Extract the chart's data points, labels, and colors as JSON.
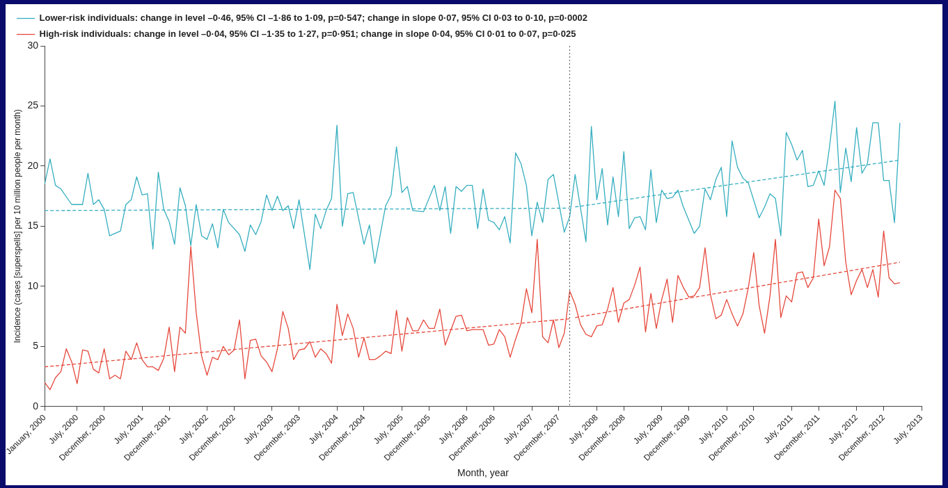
{
  "chart_data": {
    "type": "line",
    "xlabel": "Month, year",
    "ylabel": "Incidence (cases [superspells] per 10 million people per month)",
    "xlim": [
      "2000-01",
      "2013-07"
    ],
    "xticks": [
      {
        "value": "2000-01",
        "label": "January, 2000"
      },
      {
        "value": "2000-07",
        "label": "July, 2000"
      },
      {
        "value": "2000-12",
        "label": "December, 2000"
      },
      {
        "value": "2001-07",
        "label": "July, 2001"
      },
      {
        "value": "2001-12",
        "label": "December, 2001"
      },
      {
        "value": "2002-07",
        "label": "July, 2002"
      },
      {
        "value": "2002-12",
        "label": "December, 2002"
      },
      {
        "value": "2003-07",
        "label": "July, 2003"
      },
      {
        "value": "2003-12",
        "label": "December, 2003"
      },
      {
        "value": "2004-07",
        "label": "July, 2004"
      },
      {
        "value": "2004-12",
        "label": "December, 2004"
      },
      {
        "value": "2005-07",
        "label": "July, 2005"
      },
      {
        "value": "2005-12",
        "label": "December, 2005"
      },
      {
        "value": "2006-07",
        "label": "July, 2006"
      },
      {
        "value": "2006-12",
        "label": "December, 2006"
      },
      {
        "value": "2007-07",
        "label": "July, 2007"
      },
      {
        "value": "2007-12",
        "label": "December, 2007"
      },
      {
        "value": "2008-07",
        "label": "July, 2008"
      },
      {
        "value": "2008-12",
        "label": "December, 2008"
      },
      {
        "value": "2009-07",
        "label": "July, 2009"
      },
      {
        "value": "2009-12",
        "label": "December, 2009"
      },
      {
        "value": "2010-07",
        "label": "July, 2010"
      },
      {
        "value": "2010-12",
        "label": "December, 2010"
      },
      {
        "value": "2011-07",
        "label": "July, 2011"
      },
      {
        "value": "2011-12",
        "label": "December, 2011"
      },
      {
        "value": "2012-07",
        "label": "July, 2012"
      },
      {
        "value": "2012-12",
        "label": "December, 2012"
      },
      {
        "value": "2013-07",
        "label": "July, 2013"
      }
    ],
    "ylim": [
      0,
      30
    ],
    "yticks": [
      0,
      5,
      10,
      15,
      20,
      25,
      30
    ],
    "grid": false,
    "legend": "top left",
    "marker": "none",
    "line_style": "solid",
    "ref_lines": [
      {
        "axis": "x",
        "value": "2008-02",
        "color": "#555555",
        "line_style": "dotted"
      }
    ],
    "series": [
      {
        "name": "Lower-risk individuals: change in level –0·46, 95% CI –1·86 to 1·09, p=0·547; change in slope 0·07, 95% CI 0·03 to 0·10, p=0·0002",
        "color": "#35aebf",
        "x": [
          "2000-01",
          "2000-02",
          "2000-03",
          "2000-04",
          "2000-06",
          "2000-08",
          "2000-09",
          "2000-10",
          "2000-11",
          "2000-12",
          "2001-01",
          "2001-03",
          "2001-04",
          "2001-05",
          "2001-06",
          "2001-07",
          "2001-08",
          "2001-09",
          "2001-10",
          "2001-11",
          "2001-12",
          "2002-01",
          "2002-02",
          "2002-03",
          "2002-04",
          "2002-05",
          "2002-06",
          "2002-07",
          "2002-08",
          "2002-09",
          "2002-10",
          "2002-11",
          "2003-01",
          "2003-02",
          "2003-03",
          "2003-04",
          "2003-05",
          "2003-06",
          "2003-07",
          "2003-08",
          "2003-09",
          "2003-10",
          "2003-11",
          "2003-12",
          "2004-02",
          "2004-03",
          "2004-04",
          "2004-05",
          "2004-06",
          "2004-07",
          "2004-08",
          "2004-09",
          "2004-10",
          "2004-12",
          "2005-01",
          "2005-02",
          "2005-04",
          "2005-05",
          "2005-06",
          "2005-07",
          "2005-08",
          "2005-09",
          "2005-11",
          "2006-01",
          "2006-02",
          "2006-03",
          "2006-04",
          "2006-05",
          "2006-06",
          "2006-07",
          "2006-08",
          "2006-09",
          "2006-10",
          "2006-11",
          "2006-12",
          "2007-01",
          "2007-02",
          "2007-03",
          "2007-04",
          "2007-05",
          "2007-06",
          "2007-07",
          "2007-08",
          "2007-09",
          "2007-10",
          "2007-11",
          "2008-01",
          "2008-02",
          "2008-03",
          "2008-05",
          "2008-06",
          "2008-07",
          "2008-08",
          "2008-09",
          "2008-10",
          "2008-11",
          "2008-12",
          "2009-01",
          "2009-02",
          "2009-03",
          "2009-04",
          "2009-05",
          "2009-06",
          "2009-07",
          "2009-08",
          "2009-09",
          "2009-10",
          "2009-11",
          "2010-01",
          "2010-02",
          "2010-03",
          "2010-04",
          "2010-05",
          "2010-06",
          "2010-07",
          "2010-08",
          "2010-09",
          "2010-10",
          "2010-11",
          "2011-01",
          "2011-02",
          "2011-03",
          "2011-04",
          "2011-05",
          "2011-06",
          "2011-07",
          "2011-08",
          "2011-09",
          "2011-10",
          "2011-11",
          "2011-12",
          "2012-01",
          "2012-02",
          "2012-03",
          "2012-04",
          "2012-05",
          "2012-06",
          "2012-07",
          "2012-08",
          "2012-09",
          "2012-10",
          "2012-11",
          "2012-12",
          "2013-01",
          "2013-02",
          "2013-03"
        ],
        "values": [
          18.5,
          20.6,
          18.4,
          18.1,
          16.8,
          16.8,
          19.4,
          16.8,
          17.2,
          16.4,
          14.2,
          14.6,
          16.8,
          17.2,
          19.1,
          17.6,
          17.7,
          13.1,
          19.5,
          16.4,
          15.4,
          13.5,
          18.2,
          16.7,
          13.4,
          16.8,
          14.2,
          13.9,
          15.2,
          13.2,
          16.4,
          15.3,
          14.3,
          12.9,
          15.1,
          14.3,
          15.4,
          17.6,
          16.3,
          17.5,
          16.3,
          16.7,
          14.8,
          17.2,
          11.4,
          16.0,
          14.8,
          16.3,
          17.3,
          23.4,
          15.0,
          17.7,
          17.8,
          13.5,
          15.1,
          11.9,
          16.7,
          17.6,
          21.6,
          17.8,
          18.3,
          16.3,
          16.2,
          18.4,
          16.3,
          18.3,
          14.4,
          18.3,
          17.9,
          18.4,
          18.4,
          14.8,
          18.1,
          15.5,
          15.3,
          14.7,
          15.8,
          13.6,
          21.1,
          20.2,
          18.4,
          14.2,
          17.0,
          15.3,
          18.9,
          19.3,
          14.5,
          15.8,
          19.3,
          13.7,
          23.3,
          17.2,
          19.8,
          15.1,
          19.1,
          15.8,
          21.2,
          14.8,
          15.7,
          15.8,
          14.7,
          19.7,
          15.3,
          18.0,
          17.3,
          17.4,
          18.0,
          16.6,
          14.4,
          15.0,
          18.1,
          17.2,
          18.9,
          19.9,
          15.8,
          22.1,
          19.9,
          19.0,
          18.6,
          15.7,
          16.6,
          17.7,
          17.3,
          14.2,
          22.8,
          21.8,
          20.5,
          21.3,
          18.3,
          18.4,
          19.6,
          18.4,
          21.6,
          25.4,
          17.8,
          21.5,
          18.7,
          23.2,
          19.4,
          20.2,
          23.6,
          23.6,
          18.8,
          18.8,
          15.3,
          23.6
        ]
      },
      {
        "name": "High-risk individuals: change in level –0·04, 95% CI –1·35 to 1·27, p=0·951; change in slope 0·04, 95% CI 0·01 to 0·07, p=0·025",
        "color": "#e5483b",
        "x": [
          "2000-01",
          "2000-02",
          "2000-03",
          "2000-04",
          "2000-05",
          "2000-06",
          "2000-07",
          "2000-08",
          "2000-09",
          "2000-10",
          "2000-11",
          "2000-12",
          "2001-01",
          "2001-02",
          "2001-03",
          "2001-04",
          "2001-05",
          "2001-06",
          "2001-07",
          "2001-08",
          "2001-09",
          "2001-10",
          "2001-11",
          "2001-12",
          "2002-01",
          "2002-02",
          "2002-03",
          "2002-04",
          "2002-05",
          "2002-06",
          "2002-07",
          "2002-08",
          "2002-09",
          "2002-10",
          "2002-11",
          "2002-12",
          "2003-01",
          "2003-02",
          "2003-03",
          "2003-04",
          "2003-05",
          "2003-06",
          "2003-07",
          "2003-08",
          "2003-09",
          "2003-10",
          "2003-11",
          "2003-12",
          "2004-01",
          "2004-02",
          "2004-03",
          "2004-04",
          "2004-05",
          "2004-06",
          "2004-07",
          "2004-08",
          "2004-09",
          "2004-10",
          "2004-11",
          "2004-12",
          "2005-01",
          "2005-02",
          "2005-03",
          "2005-04",
          "2005-05",
          "2005-06",
          "2005-07",
          "2005-08",
          "2005-09",
          "2005-10",
          "2005-11",
          "2005-12",
          "2006-01",
          "2006-02",
          "2006-03",
          "2006-04",
          "2006-05",
          "2006-06",
          "2006-07",
          "2006-08",
          "2006-09",
          "2006-10",
          "2006-11",
          "2006-12",
          "2007-01",
          "2007-02",
          "2007-03",
          "2007-04",
          "2007-05",
          "2007-06",
          "2007-07",
          "2007-08",
          "2007-09",
          "2007-10",
          "2007-11",
          "2007-12",
          "2008-01",
          "2008-02",
          "2008-03",
          "2008-04",
          "2008-05",
          "2008-06",
          "2008-07",
          "2008-08",
          "2008-09",
          "2008-10",
          "2008-11",
          "2008-12",
          "2009-01",
          "2009-02",
          "2009-03",
          "2009-04",
          "2009-05",
          "2009-06",
          "2009-07",
          "2009-08",
          "2009-09",
          "2009-10",
          "2009-11",
          "2009-12",
          "2010-01",
          "2010-02",
          "2010-03",
          "2010-04",
          "2010-05",
          "2010-06",
          "2010-07",
          "2010-08",
          "2010-09",
          "2010-10",
          "2010-11",
          "2010-12",
          "2011-01",
          "2011-02",
          "2011-03",
          "2011-04",
          "2011-05",
          "2011-06",
          "2011-07",
          "2011-08",
          "2011-09",
          "2011-10",
          "2011-11",
          "2011-12",
          "2012-01",
          "2012-02",
          "2012-03",
          "2012-04",
          "2012-05",
          "2012-06",
          "2012-07",
          "2012-08",
          "2012-09",
          "2012-10",
          "2012-11",
          "2012-12",
          "2013-01",
          "2013-02",
          "2013-03"
        ],
        "values": [
          2.0,
          1.4,
          2.4,
          2.9,
          4.8,
          3.7,
          1.9,
          4.7,
          4.6,
          3.1,
          2.8,
          4.8,
          2.3,
          2.6,
          2.3,
          4.6,
          3.9,
          5.3,
          3.9,
          3.3,
          3.3,
          3.0,
          4.0,
          6.6,
          2.9,
          6.6,
          6.1,
          13.3,
          7.8,
          4.2,
          2.6,
          4.1,
          3.9,
          5.0,
          4.3,
          4.7,
          7.2,
          2.3,
          5.5,
          5.6,
          4.2,
          3.7,
          2.9,
          4.8,
          7.9,
          6.5,
          3.9,
          4.7,
          4.8,
          5.4,
          4.1,
          4.8,
          4.4,
          3.6,
          8.5,
          5.9,
          7.7,
          6.5,
          4.1,
          5.7,
          3.9,
          3.9,
          4.2,
          4.6,
          4.4,
          8.0,
          4.6,
          7.4,
          6.3,
          6.3,
          7.2,
          6.5,
          6.5,
          8.1,
          5.1,
          6.3,
          7.5,
          7.6,
          6.3,
          6.4,
          6.4,
          6.4,
          5.1,
          5.2,
          6.4,
          5.8,
          4.1,
          5.6,
          6.9,
          9.8,
          7.8,
          13.9,
          5.8,
          5.3,
          7.2,
          4.9,
          6.1,
          9.6,
          8.5,
          6.8,
          6.0,
          5.8,
          6.7,
          6.8,
          8.1,
          9.9,
          7.0,
          8.6,
          8.9,
          10.1,
          11.6,
          6.2,
          9.4,
          6.5,
          8.9,
          10.6,
          7.0,
          10.9,
          9.9,
          9.1,
          9.2,
          9.9,
          13.2,
          9.3,
          7.3,
          7.6,
          8.9,
          7.7,
          6.7,
          7.7,
          9.9,
          12.8,
          8.4,
          6.1,
          9.2,
          13.9,
          7.4,
          9.2,
          8.7,
          11.1,
          11.2,
          9.9,
          10.7,
          15.6,
          11.7,
          13.3,
          18.0,
          17.3,
          12.0,
          9.3,
          10.5,
          11.4,
          9.9,
          11.4,
          9.1,
          14.6,
          10.7,
          10.2,
          10.3
        ]
      },
      {
        "type": "line",
        "color": "#35aebf",
        "line_style": "dashed",
        "x": [
          "2000-01",
          "2008-02"
        ],
        "values": [
          16.3,
          16.5
        ]
      },
      {
        "type": "line",
        "color": "#35aebf",
        "line_style": "dashed",
        "x": [
          "2008-03",
          "2013-03"
        ],
        "values": [
          16.6,
          20.5
        ]
      },
      {
        "type": "line",
        "color": "#e5483b",
        "line_style": "dashed",
        "x": [
          "2000-01",
          "2008-02"
        ],
        "values": [
          3.3,
          7.3
        ]
      },
      {
        "type": "line",
        "color": "#e5483b",
        "line_style": "dashed",
        "x": [
          "2008-03",
          "2013-03"
        ],
        "values": [
          7.4,
          12.0
        ]
      }
    ]
  }
}
